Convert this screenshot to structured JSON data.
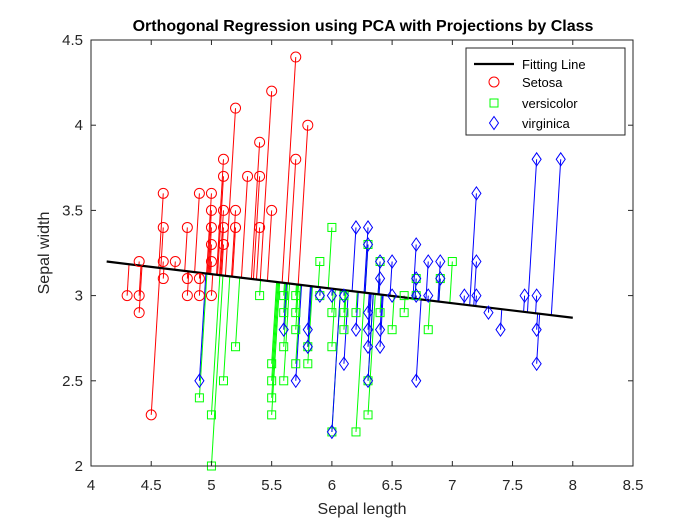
{
  "chart_data": {
    "type": "scatter",
    "title": "Orthogonal Regression using PCA with Projections by Class",
    "xlabel": "Sepal length",
    "ylabel": "Sepal width",
    "xlim": [
      4,
      8.5
    ],
    "ylim": [
      2,
      4.5
    ],
    "xticks": [
      "4",
      "4.5",
      "5",
      "5.5",
      "6",
      "6.5",
      "7",
      "7.5",
      "8",
      "8.5"
    ],
    "yticks": [
      "2",
      "2.5",
      "3",
      "3.5",
      "4",
      "4.5"
    ],
    "grid": false,
    "legend_position": "top-right",
    "fit_line": {
      "name": "Fitting Line",
      "color": "#000000",
      "x": [
        4.13,
        8.0
      ],
      "y": [
        3.2,
        2.87
      ]
    },
    "series": [
      {
        "name": "Setosa",
        "marker": "circle",
        "color": "#ff0000",
        "points": [
          [
            4.3,
            3.0
          ],
          [
            4.4,
            2.9
          ],
          [
            4.4,
            3.0
          ],
          [
            4.4,
            3.2
          ],
          [
            4.5,
            2.3
          ],
          [
            4.6,
            3.1
          ],
          [
            4.6,
            3.2
          ],
          [
            4.6,
            3.4
          ],
          [
            4.6,
            3.6
          ],
          [
            4.7,
            3.2
          ],
          [
            4.8,
            3.0
          ],
          [
            4.8,
            3.1
          ],
          [
            4.8,
            3.4
          ],
          [
            4.9,
            3.0
          ],
          [
            4.9,
            3.1
          ],
          [
            4.9,
            3.6
          ],
          [
            5.0,
            3.0
          ],
          [
            5.0,
            3.2
          ],
          [
            5.0,
            3.3
          ],
          [
            5.0,
            3.4
          ],
          [
            5.0,
            3.5
          ],
          [
            5.0,
            3.6
          ],
          [
            5.1,
            3.3
          ],
          [
            5.1,
            3.4
          ],
          [
            5.1,
            3.5
          ],
          [
            5.1,
            3.7
          ],
          [
            5.1,
            3.8
          ],
          [
            5.2,
            3.4
          ],
          [
            5.2,
            3.5
          ],
          [
            5.2,
            4.1
          ],
          [
            5.3,
            3.7
          ],
          [
            5.4,
            3.4
          ],
          [
            5.4,
            3.7
          ],
          [
            5.4,
            3.9
          ],
          [
            5.5,
            3.5
          ],
          [
            5.5,
            4.2
          ],
          [
            5.7,
            3.8
          ],
          [
            5.7,
            4.4
          ],
          [
            5.8,
            4.0
          ]
        ]
      },
      {
        "name": "versicolor",
        "marker": "square",
        "color": "#00ff00",
        "points": [
          [
            4.9,
            2.4
          ],
          [
            5.0,
            2.0
          ],
          [
            5.0,
            2.3
          ],
          [
            5.1,
            2.5
          ],
          [
            5.2,
            2.7
          ],
          [
            5.4,
            3.0
          ],
          [
            5.5,
            2.3
          ],
          [
            5.5,
            2.4
          ],
          [
            5.5,
            2.5
          ],
          [
            5.5,
            2.6
          ],
          [
            5.6,
            2.5
          ],
          [
            5.6,
            2.7
          ],
          [
            5.6,
            2.9
          ],
          [
            5.6,
            3.0
          ],
          [
            5.7,
            2.6
          ],
          [
            5.7,
            2.8
          ],
          [
            5.7,
            2.9
          ],
          [
            5.7,
            3.0
          ],
          [
            5.8,
            2.6
          ],
          [
            5.8,
            2.7
          ],
          [
            5.9,
            3.0
          ],
          [
            5.9,
            3.2
          ],
          [
            6.0,
            2.2
          ],
          [
            6.0,
            2.7
          ],
          [
            6.0,
            2.9
          ],
          [
            6.0,
            3.4
          ],
          [
            6.1,
            2.8
          ],
          [
            6.1,
            2.9
          ],
          [
            6.1,
            3.0
          ],
          [
            6.2,
            2.2
          ],
          [
            6.2,
            2.9
          ],
          [
            6.3,
            2.3
          ],
          [
            6.3,
            2.5
          ],
          [
            6.3,
            3.3
          ],
          [
            6.4,
            2.9
          ],
          [
            6.4,
            3.2
          ],
          [
            6.5,
            2.8
          ],
          [
            6.6,
            2.9
          ],
          [
            6.6,
            3.0
          ],
          [
            6.7,
            3.0
          ],
          [
            6.7,
            3.1
          ],
          [
            6.8,
            2.8
          ],
          [
            6.9,
            3.1
          ],
          [
            7.0,
            3.2
          ]
        ]
      },
      {
        "name": "virginica",
        "marker": "diamond",
        "color": "#0000ff",
        "points": [
          [
            4.9,
            2.5
          ],
          [
            5.6,
            2.8
          ],
          [
            5.7,
            2.5
          ],
          [
            5.8,
            2.7
          ],
          [
            5.8,
            2.8
          ],
          [
            5.9,
            3.0
          ],
          [
            6.0,
            2.2
          ],
          [
            6.0,
            3.0
          ],
          [
            6.1,
            2.6
          ],
          [
            6.1,
            3.0
          ],
          [
            6.2,
            2.8
          ],
          [
            6.2,
            3.4
          ],
          [
            6.3,
            2.5
          ],
          [
            6.3,
            2.7
          ],
          [
            6.3,
            2.8
          ],
          [
            6.3,
            2.9
          ],
          [
            6.3,
            3.3
          ],
          [
            6.3,
            3.4
          ],
          [
            6.4,
            2.7
          ],
          [
            6.4,
            2.8
          ],
          [
            6.4,
            3.1
          ],
          [
            6.4,
            3.2
          ],
          [
            6.5,
            3.0
          ],
          [
            6.5,
            3.2
          ],
          [
            6.7,
            2.5
          ],
          [
            6.7,
            3.0
          ],
          [
            6.7,
            3.1
          ],
          [
            6.7,
            3.3
          ],
          [
            6.8,
            3.0
          ],
          [
            6.8,
            3.2
          ],
          [
            6.9,
            3.1
          ],
          [
            6.9,
            3.2
          ],
          [
            7.1,
            3.0
          ],
          [
            7.2,
            3.0
          ],
          [
            7.2,
            3.2
          ],
          [
            7.2,
            3.6
          ],
          [
            7.3,
            2.9
          ],
          [
            7.4,
            2.8
          ],
          [
            7.6,
            3.0
          ],
          [
            7.7,
            2.6
          ],
          [
            7.7,
            2.8
          ],
          [
            7.7,
            3.0
          ],
          [
            7.7,
            3.8
          ],
          [
            7.9,
            3.8
          ]
        ]
      }
    ]
  }
}
